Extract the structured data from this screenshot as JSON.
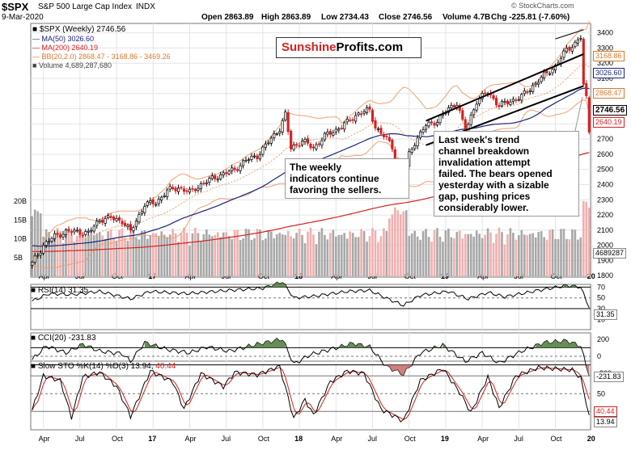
{
  "header": {
    "symbol": "$SPX",
    "name": "S&P 500 Large Cap Index",
    "exchange": "INDX",
    "date": "9-Mar-2020",
    "open": "Open 2863.89",
    "high": "High 2863.89",
    "low": "Low 2734.43",
    "close": "Close 2746.56",
    "volume": "Volume 4.7B",
    "change": "Chg -225.81 (-7.60%)",
    "watermark": "© StockCharts.com"
  },
  "legend": {
    "series": "$SPX (Weekly) 2746.56",
    "ma50": "MA(50) 3026.60",
    "ma200": "MA(200) 2640.19",
    "bb": "BB(20,2.0) 2868.47 - 3168.86 - 3469.26",
    "volume": "Volume 4,689,287,680"
  },
  "logo": {
    "part1": "Sunshine",
    "part2": "Profits.com"
  },
  "notes": {
    "left": [
      "The weekly",
      "indicators continue",
      "favoring the sellers."
    ],
    "right": [
      "Last week's trend",
      "channel breakdown",
      "invalidation attempt",
      "failed. The bears opened",
      "yesterday with a sizable",
      "gap, pushing prices",
      "considerably lower."
    ]
  },
  "price_labels": {
    "bb_upper": "3168.86",
    "ma50": "3026.60",
    "bb_lower": "2868.47",
    "close": "2746.56",
    "ma200": "2640.19",
    "volume": "4689287"
  },
  "rsi": {
    "label": "RSI(14) 31.35",
    "value_label": "31.35",
    "ticks": [
      "70",
      "50",
      "30",
      "10"
    ]
  },
  "cci": {
    "label": "CCI(20) -231.83",
    "value_label": "-231.83",
    "ticks": [
      "200",
      "0",
      "-200"
    ]
  },
  "sto": {
    "label": "Slow STO %K(14) %D(3) 13.94,",
    "d_label": "40.44",
    "k_value": "13.94",
    "d_value": "40.44",
    "ticks": [
      "80",
      "50",
      "20"
    ]
  },
  "colors": {
    "up": "#000000",
    "down": "#d62020",
    "ma50": "#1a237e",
    "ma200": "#d62020",
    "bb": "#f0a070",
    "vol_up": "#a8a8a8",
    "vol_down": "#f0b0b0",
    "fill": "#4e7a3a"
  },
  "chart_data": {
    "type": "candlestick",
    "title": "$SPX S&P 500 Large Cap Index INDX (Weekly)",
    "x_ticks": [
      "Apr",
      "Jul",
      "Oct",
      "17",
      "Apr",
      "Jul",
      "Oct",
      "18",
      "Apr",
      "Jul",
      "Oct",
      "19",
      "Apr",
      "Jul",
      "Oct",
      "20"
    ],
    "y_ticks": [
      1800,
      1900,
      2000,
      2100,
      2200,
      2300,
      2400,
      2500,
      2600,
      2700,
      2800,
      2900,
      3000,
      3100,
      3200,
      3300,
      3400
    ],
    "volume_ticks": [
      "20B",
      "15B",
      "10B",
      "5B"
    ],
    "ylim": [
      1780,
      3450
    ],
    "close_anchors": [
      {
        "w": 0,
        "v": 1880
      },
      {
        "w": 4,
        "v": 2000
      },
      {
        "w": 8,
        "v": 2060
      },
      {
        "w": 12,
        "v": 2090
      },
      {
        "w": 16,
        "v": 2090
      },
      {
        "w": 20,
        "v": 2080
      },
      {
        "w": 24,
        "v": 2170
      },
      {
        "w": 28,
        "v": 2180
      },
      {
        "w": 32,
        "v": 2160
      },
      {
        "w": 35,
        "v": 2090
      },
      {
        "w": 40,
        "v": 2270
      },
      {
        "w": 44,
        "v": 2280
      },
      {
        "w": 48,
        "v": 2360
      },
      {
        "w": 52,
        "v": 2380
      },
      {
        "w": 56,
        "v": 2350
      },
      {
        "w": 60,
        "v": 2400
      },
      {
        "w": 64,
        "v": 2440
      },
      {
        "w": 68,
        "v": 2470
      },
      {
        "w": 72,
        "v": 2500
      },
      {
        "w": 76,
        "v": 2560
      },
      {
        "w": 80,
        "v": 2590
      },
      {
        "w": 84,
        "v": 2680
      },
      {
        "w": 88,
        "v": 2770
      },
      {
        "w": 90,
        "v": 2860
      },
      {
        "w": 92,
        "v": 2640
      },
      {
        "w": 96,
        "v": 2690
      },
      {
        "w": 100,
        "v": 2640
      },
      {
        "w": 104,
        "v": 2720
      },
      {
        "w": 108,
        "v": 2760
      },
      {
        "w": 112,
        "v": 2810
      },
      {
        "w": 116,
        "v": 2870
      },
      {
        "w": 120,
        "v": 2890
      },
      {
        "w": 122,
        "v": 2780
      },
      {
        "w": 124,
        "v": 2740
      },
      {
        "w": 126,
        "v": 2700
      },
      {
        "w": 128,
        "v": 2650
      },
      {
        "w": 130,
        "v": 2500
      },
      {
        "w": 132,
        "v": 2420
      },
      {
        "w": 134,
        "v": 2600
      },
      {
        "w": 136,
        "v": 2680
      },
      {
        "w": 140,
        "v": 2790
      },
      {
        "w": 144,
        "v": 2820
      },
      {
        "w": 148,
        "v": 2900
      },
      {
        "w": 151,
        "v": 2940
      },
      {
        "w": 154,
        "v": 2750
      },
      {
        "w": 158,
        "v": 2950
      },
      {
        "w": 162,
        "v": 3010
      },
      {
        "w": 166,
        "v": 2920
      },
      {
        "w": 170,
        "v": 2950
      },
      {
        "w": 174,
        "v": 2980
      },
      {
        "w": 178,
        "v": 3050
      },
      {
        "w": 182,
        "v": 3120
      },
      {
        "w": 186,
        "v": 3180
      },
      {
        "w": 190,
        "v": 3290
      },
      {
        "w": 193,
        "v": 3330
      },
      {
        "w": 195,
        "v": 3370
      },
      {
        "w": 196,
        "v": 3050
      },
      {
        "w": 197,
        "v": 2970
      },
      {
        "w": 198,
        "v": 2746
      }
    ],
    "rsi_anchors": [
      {
        "w": 0,
        "v": 44
      },
      {
        "w": 6,
        "v": 58
      },
      {
        "w": 14,
        "v": 56
      },
      {
        "w": 24,
        "v": 62
      },
      {
        "w": 35,
        "v": 48
      },
      {
        "w": 42,
        "v": 62
      },
      {
        "w": 55,
        "v": 58
      },
      {
        "w": 70,
        "v": 64
      },
      {
        "w": 82,
        "v": 68
      },
      {
        "w": 89,
        "v": 80
      },
      {
        "w": 93,
        "v": 50
      },
      {
        "w": 100,
        "v": 53
      },
      {
        "w": 112,
        "v": 62
      },
      {
        "w": 120,
        "v": 64
      },
      {
        "w": 127,
        "v": 47
      },
      {
        "w": 132,
        "v": 36
      },
      {
        "w": 138,
        "v": 55
      },
      {
        "w": 148,
        "v": 62
      },
      {
        "w": 155,
        "v": 48
      },
      {
        "w": 162,
        "v": 60
      },
      {
        "w": 168,
        "v": 52
      },
      {
        "w": 180,
        "v": 64
      },
      {
        "w": 190,
        "v": 73
      },
      {
        "w": 195,
        "v": 70
      },
      {
        "w": 198,
        "v": 31.35
      }
    ],
    "cci_anchors": [
      {
        "w": 0,
        "v": -40
      },
      {
        "w": 5,
        "v": 120
      },
      {
        "w": 12,
        "v": 40
      },
      {
        "w": 18,
        "v": 140
      },
      {
        "w": 24,
        "v": 60
      },
      {
        "w": 32,
        "v": 30
      },
      {
        "w": 35,
        "v": -60
      },
      {
        "w": 40,
        "v": 160
      },
      {
        "w": 48,
        "v": 80
      },
      {
        "w": 56,
        "v": 40
      },
      {
        "w": 62,
        "v": 110
      },
      {
        "w": 70,
        "v": 60
      },
      {
        "w": 80,
        "v": 140
      },
      {
        "w": 89,
        "v": 200
      },
      {
        "w": 93,
        "v": -90
      },
      {
        "w": 99,
        "v": 20
      },
      {
        "w": 106,
        "v": 80
      },
      {
        "w": 114,
        "v": 150
      },
      {
        "w": 120,
        "v": 110
      },
      {
        "w": 126,
        "v": -120
      },
      {
        "w": 132,
        "v": -210
      },
      {
        "w": 138,
        "v": 40
      },
      {
        "w": 146,
        "v": 130
      },
      {
        "w": 154,
        "v": -60
      },
      {
        "w": 160,
        "v": 40
      },
      {
        "w": 166,
        "v": -80
      },
      {
        "w": 174,
        "v": 60
      },
      {
        "w": 182,
        "v": 160
      },
      {
        "w": 190,
        "v": 180
      },
      {
        "w": 195,
        "v": 120
      },
      {
        "w": 198,
        "v": -231.83
      }
    ],
    "sto_k_anchors": [
      {
        "w": 0,
        "v": 22
      },
      {
        "w": 4,
        "v": 80
      },
      {
        "w": 10,
        "v": 72
      },
      {
        "w": 14,
        "v": 10
      },
      {
        "w": 18,
        "v": 78
      },
      {
        "w": 24,
        "v": 86
      },
      {
        "w": 30,
        "v": 62
      },
      {
        "w": 35,
        "v": 12
      },
      {
        "w": 42,
        "v": 88
      },
      {
        "w": 50,
        "v": 70
      },
      {
        "w": 54,
        "v": 24
      },
      {
        "w": 60,
        "v": 84
      },
      {
        "w": 68,
        "v": 62
      },
      {
        "w": 72,
        "v": 86
      },
      {
        "w": 80,
        "v": 82
      },
      {
        "w": 88,
        "v": 96
      },
      {
        "w": 93,
        "v": 8
      },
      {
        "w": 97,
        "v": 40
      },
      {
        "w": 100,
        "v": 14
      },
      {
        "w": 106,
        "v": 70
      },
      {
        "w": 112,
        "v": 88
      },
      {
        "w": 118,
        "v": 84
      },
      {
        "w": 124,
        "v": 24
      },
      {
        "w": 132,
        "v": 4
      },
      {
        "w": 138,
        "v": 72
      },
      {
        "w": 146,
        "v": 92
      },
      {
        "w": 152,
        "v": 52
      },
      {
        "w": 156,
        "v": 18
      },
      {
        "w": 162,
        "v": 78
      },
      {
        "w": 166,
        "v": 26
      },
      {
        "w": 172,
        "v": 80
      },
      {
        "w": 180,
        "v": 94
      },
      {
        "w": 186,
        "v": 92
      },
      {
        "w": 192,
        "v": 90
      },
      {
        "w": 195,
        "v": 76
      },
      {
        "w": 198,
        "v": 13.94
      }
    ]
  }
}
